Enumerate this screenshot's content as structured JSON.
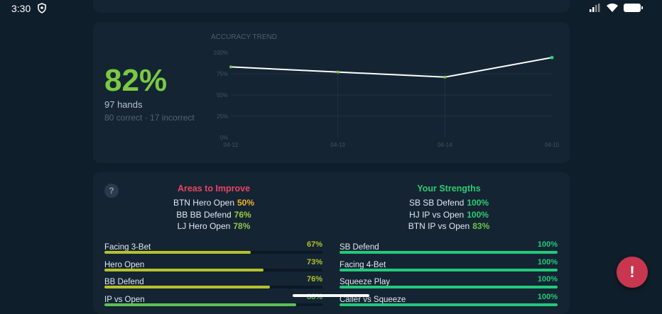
{
  "status": {
    "time": "3:30"
  },
  "summary": {
    "accuracy": "82%",
    "hands": "97 hands",
    "breakdown": "80 correct · 17 incorrect"
  },
  "chart_data": {
    "type": "line",
    "title": "ACCURACY TREND",
    "categories": [
      "04-12",
      "04-13",
      "04-14",
      "04-15"
    ],
    "values": [
      83,
      77,
      71,
      94
    ],
    "ylim": [
      0,
      100
    ],
    "yticks": [
      "0%",
      "25%",
      "50%",
      "75%",
      "100%"
    ],
    "grid": true,
    "line_color": "#ffffff",
    "point_color": "#8bc34a"
  },
  "improve": {
    "title": "Areas to Improve",
    "title_color": "#e8455e",
    "items": [
      {
        "label": "BTN Hero Open",
        "value": "50%",
        "color": "#f0b429"
      },
      {
        "label": "BB BB Defend",
        "value": "76%",
        "color": "#9ccc3d"
      },
      {
        "label": "LJ Hero Open",
        "value": "78%",
        "color": "#8bc34a"
      }
    ],
    "bars": [
      {
        "label": "Facing 3-Bet",
        "value": "67%",
        "pct": 67,
        "color": "#b5c22a"
      },
      {
        "label": "Hero Open",
        "value": "73%",
        "pct": 73,
        "color": "#b5c22a"
      },
      {
        "label": "BB Defend",
        "value": "76%",
        "pct": 76,
        "color": "#b5c22a"
      },
      {
        "label": "IP vs Open",
        "value": "88%",
        "pct": 88,
        "color": "#5cc151"
      }
    ]
  },
  "strengths": {
    "title": "Your Strengths",
    "title_color": "#2ecc71",
    "items": [
      {
        "label": "SB SB Defend",
        "value": "100%",
        "color": "#2ecc71"
      },
      {
        "label": "HJ IP vs Open",
        "value": "100%",
        "color": "#2ecc71"
      },
      {
        "label": "BTN IP vs Open",
        "value": "83%",
        "color": "#6cc24a"
      }
    ],
    "bars": [
      {
        "label": "SB Defend",
        "value": "100%",
        "pct": 100,
        "color": "#22c97a"
      },
      {
        "label": "Facing 4-Bet",
        "value": "100%",
        "pct": 100,
        "color": "#22c97a"
      },
      {
        "label": "Squeeze Play",
        "value": "100%",
        "pct": 100,
        "color": "#22c97a"
      },
      {
        "label": "Caller vs Squeeze",
        "value": "100%",
        "pct": 100,
        "color": "#22c97a"
      }
    ]
  },
  "help": "?",
  "fab": "!"
}
